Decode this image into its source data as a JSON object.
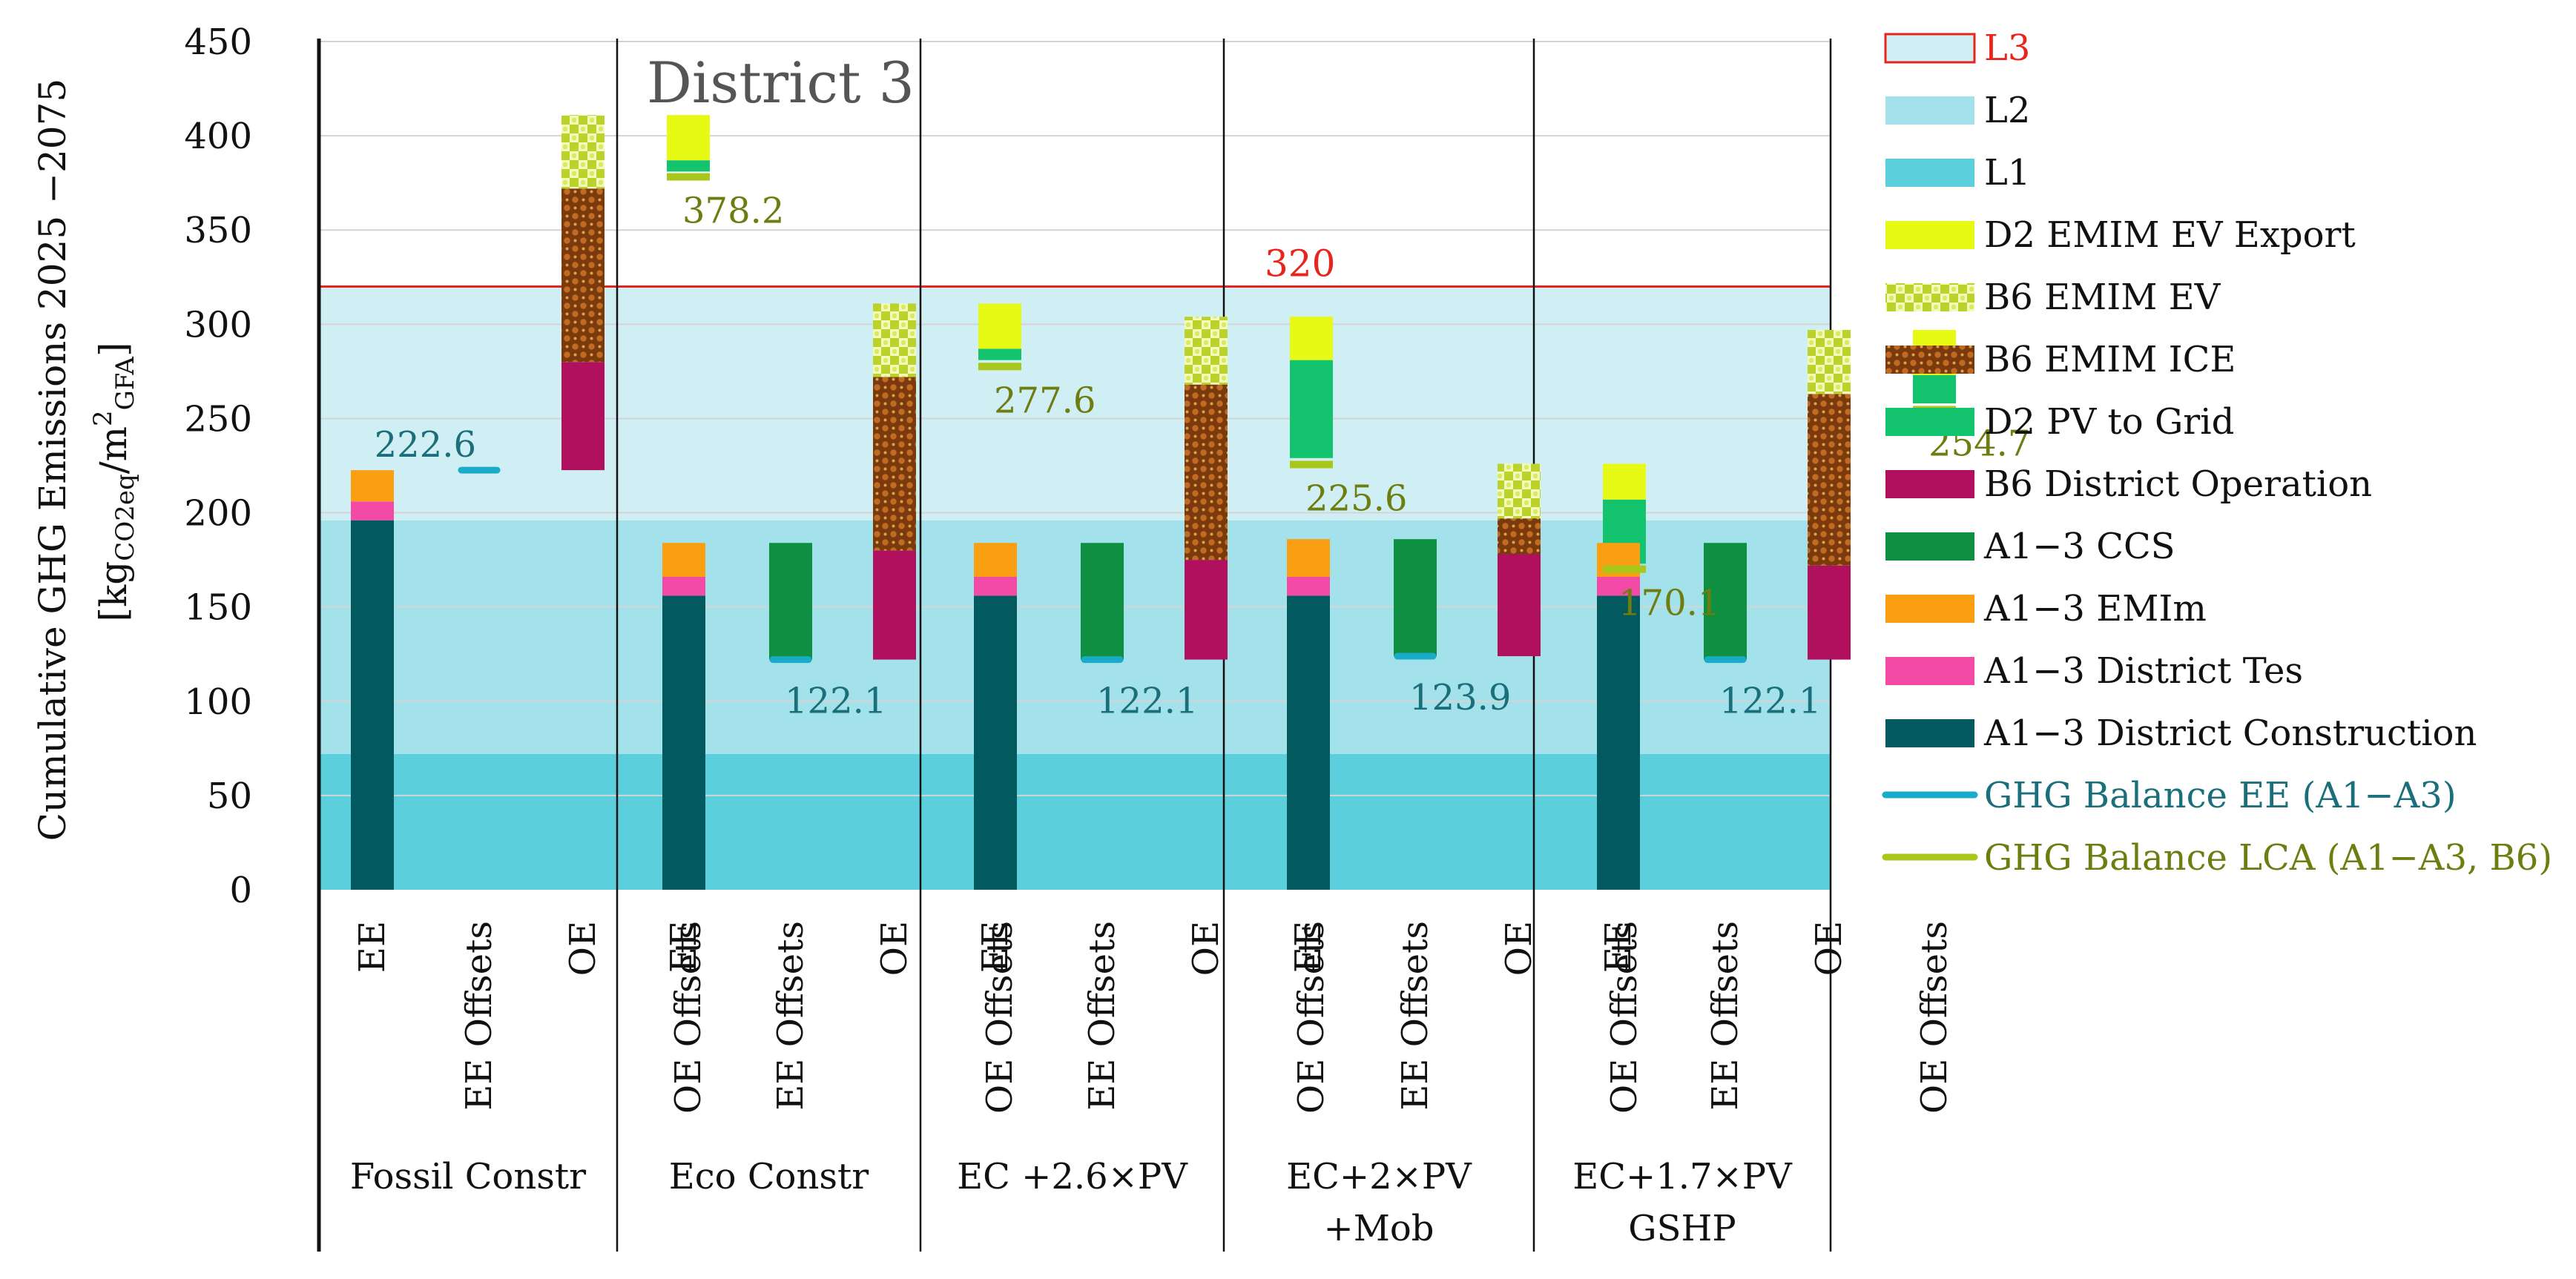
{
  "chart_data": {
    "type": "bar",
    "subtype": "stacked-floating-bar",
    "title": "District 3",
    "ylabel_line1": "Cumulative GHG Emissions 2025 −2075",
    "ylabel_line2_prefix": "[kg",
    "ylabel_sub1": "CO2eq",
    "ylabel_mid": "/m",
    "ylabel_sup": "2",
    "ylabel_sub2": "GFA",
    "ylabel_suffix": "]",
    "ylim": [
      0,
      450
    ],
    "yticks": [
      "0",
      "50",
      "100",
      "150",
      "200",
      "250",
      "300",
      "350",
      "400",
      "450"
    ],
    "bands": [
      {
        "name": "L1",
        "from": 0,
        "to": 72,
        "color": "#5bcfdc"
      },
      {
        "name": "L2",
        "from": 72,
        "to": 196,
        "color": "#a3e2ea"
      },
      {
        "name": "L3",
        "from": 196,
        "to": 320,
        "color": "#d0eff4"
      }
    ],
    "limit_line": {
      "value": 320,
      "label": "320",
      "color": "#e8251c"
    },
    "bar_labels": [
      "EE",
      "EE Offsets",
      "OE",
      "OE Offsets"
    ],
    "scenarios": [
      {
        "name": "Fossil Constr",
        "name2": "",
        "ee": [
          {
            "series": "A1−3 District Construction",
            "from": 0,
            "to": 196
          },
          {
            "series": "A1−3 District Tes",
            "from": 196,
            "to": 206
          },
          {
            "series": "A1−3 EMIm",
            "from": 206,
            "to": 222.6
          }
        ],
        "ee_offsets": [],
        "ee_balance": 222.6,
        "ee_balance_label": "222.6",
        "oe": [
          {
            "series": "B6 District Operation",
            "from": 222.6,
            "to": 280
          },
          {
            "series": "B6 EMIM ICE",
            "from": 280,
            "to": 372
          },
          {
            "series": "B6 EMIM EV",
            "from": 372,
            "to": 411
          }
        ],
        "oe_offsets": [
          {
            "series": "D2 PV to Grid",
            "from": 381,
            "to": 387
          },
          {
            "series": "D2 EMIM EV Export",
            "from": 387,
            "to": 411
          }
        ],
        "lca_balance": 378.2,
        "lca_balance_label": "378.2"
      },
      {
        "name": "Eco Constr",
        "name2": "",
        "ee": [
          {
            "series": "A1−3 District Construction",
            "from": 0,
            "to": 156
          },
          {
            "series": "A1−3 District Tes",
            "from": 156,
            "to": 166
          },
          {
            "series": "A1−3 EMIm",
            "from": 166,
            "to": 184
          }
        ],
        "ee_offsets": [
          {
            "series": "A1−3 CCS",
            "from": 122.1,
            "to": 184
          }
        ],
        "ee_balance": 122.1,
        "ee_balance_label": "122.1",
        "oe": [
          {
            "series": "B6 District Operation",
            "from": 122.1,
            "to": 180
          },
          {
            "series": "B6 EMIM ICE",
            "from": 180,
            "to": 272
          },
          {
            "series": "B6 EMIM EV",
            "from": 272,
            "to": 311
          }
        ],
        "oe_offsets": [
          {
            "series": "D2 PV to Grid",
            "from": 281,
            "to": 287
          },
          {
            "series": "D2 EMIM EV Export",
            "from": 287,
            "to": 311
          }
        ],
        "lca_balance": 277.6,
        "lca_balance_label": "277.6"
      },
      {
        "name": "EC +2.6×PV",
        "name2": "",
        "ee": [
          {
            "series": "A1−3 District Construction",
            "from": 0,
            "to": 156
          },
          {
            "series": "A1−3 District Tes",
            "from": 156,
            "to": 166
          },
          {
            "series": "A1−3 EMIm",
            "from": 166,
            "to": 184
          }
        ],
        "ee_offsets": [
          {
            "series": "A1−3 CCS",
            "from": 122.1,
            "to": 184
          }
        ],
        "ee_balance": 122.1,
        "ee_balance_label": "122.1",
        "oe": [
          {
            "series": "B6 District Operation",
            "from": 122.1,
            "to": 175
          },
          {
            "series": "B6 EMIM ICE",
            "from": 175,
            "to": 268
          },
          {
            "series": "B6 EMIM EV",
            "from": 268,
            "to": 304
          }
        ],
        "oe_offsets": [
          {
            "series": "D2 PV to Grid",
            "from": 229,
            "to": 281
          },
          {
            "series": "D2 EMIM EV Export",
            "from": 281,
            "to": 304
          }
        ],
        "lca_balance": 225.6,
        "lca_balance_label": "225.6"
      },
      {
        "name": "EC+2×PV",
        "name2": "+Mob",
        "ee": [
          {
            "series": "A1−3 District Construction",
            "from": 0,
            "to": 156
          },
          {
            "series": "A1−3 District Tes",
            "from": 156,
            "to": 166
          },
          {
            "series": "A1−3 EMIm",
            "from": 166,
            "to": 186
          }
        ],
        "ee_offsets": [
          {
            "series": "A1−3 CCS",
            "from": 123.9,
            "to": 186
          }
        ],
        "ee_balance": 123.9,
        "ee_balance_label": "123.9",
        "oe": [
          {
            "series": "B6 District Operation",
            "from": 123.9,
            "to": 178
          },
          {
            "series": "B6 EMIM ICE",
            "from": 178,
            "to": 197
          },
          {
            "series": "B6 EMIM EV",
            "from": 197,
            "to": 226
          }
        ],
        "oe_offsets": [
          {
            "series": "D2 PV to Grid",
            "from": 173,
            "to": 207
          },
          {
            "series": "D2 EMIM EV Export",
            "from": 207,
            "to": 226
          }
        ],
        "lca_balance": 170.1,
        "lca_balance_label": "170.1"
      },
      {
        "name": "EC+1.7×PV",
        "name2": "GSHP",
        "ee": [
          {
            "series": "A1−3 District Construction",
            "from": 0,
            "to": 156
          },
          {
            "series": "A1−3 District Tes",
            "from": 156,
            "to": 166
          },
          {
            "series": "A1−3 EMIm",
            "from": 166,
            "to": 184
          }
        ],
        "ee_offsets": [
          {
            "series": "A1−3 CCS",
            "from": 122.1,
            "to": 184
          }
        ],
        "ee_balance": 122.1,
        "ee_balance_label": "122.1",
        "oe": [
          {
            "series": "B6 District Operation",
            "from": 122.1,
            "to": 172
          },
          {
            "series": "B6 EMIM ICE",
            "from": 172,
            "to": 263
          },
          {
            "series": "B6 EMIM EV",
            "from": 263,
            "to": 297
          }
        ],
        "oe_offsets": [
          {
            "series": "D2 PV to Grid",
            "from": 258,
            "to": 273
          },
          {
            "series": "D2 EMIM EV Export",
            "from": 273,
            "to": 297
          }
        ],
        "lca_balance": 254.7,
        "lca_balance_label": "254.7"
      }
    ],
    "legend": [
      {
        "label": "L3",
        "kind": "box-red",
        "color": "#d0eff4",
        "text_color": "#e8251c"
      },
      {
        "label": "L2",
        "kind": "box",
        "color": "#a3e2ea",
        "text_color": "#111111"
      },
      {
        "label": "L1",
        "kind": "box",
        "color": "#5bcfdc",
        "text_color": "#111111"
      },
      {
        "label": "D2 EMIM EV Export",
        "kind": "box",
        "color": "#e6fa16",
        "text_color": "#111111"
      },
      {
        "label": "B6 EMIM EV",
        "kind": "pattern-ev",
        "color": "#cfe33a",
        "text_color": "#111111"
      },
      {
        "label": "B6 EMIM ICE",
        "kind": "pattern-ice",
        "color": "#a8581a",
        "text_color": "#111111"
      },
      {
        "label": "D2 PV to Grid",
        "kind": "box",
        "color": "#14c36d",
        "text_color": "#111111"
      },
      {
        "label": "B6 District Operation",
        "kind": "box",
        "color": "#b0105e",
        "text_color": "#111111"
      },
      {
        "label": "A1−3 CCS",
        "kind": "box",
        "color": "#0e8f42",
        "text_color": "#111111"
      },
      {
        "label": "A1−3 EMIm",
        "kind": "box",
        "color": "#fa9e12",
        "text_color": "#111111"
      },
      {
        "label": "A1−3 District Tes",
        "kind": "box",
        "color": "#f34aa6",
        "text_color": "#111111"
      },
      {
        "label": "A1−3 District Construction",
        "kind": "box",
        "color": "#025a5f",
        "text_color": "#111111"
      },
      {
        "label": "GHG Balance EE (A1−A3)",
        "kind": "line",
        "color": "#1aabc8",
        "text_color": "#1a6f7a"
      },
      {
        "label": "GHG Balance LCA (A1−A3, B6)",
        "kind": "line",
        "color": "#a9c61b",
        "text_color": "#6e7d10"
      }
    ],
    "series_colors": {
      "A1−3 District Construction": "#025a5f",
      "A1−3 District Tes": "#f34aa6",
      "A1−3 EMIm": "#fa9e12",
      "A1−3 CCS": "#0e8f42",
      "B6 District Operation": "#b0105e",
      "B6 EMIM ICE": "#a8581a",
      "B6 EMIM EV": "#cfe33a",
      "D2 PV to Grid": "#14c36d",
      "D2 EMIM EV Export": "#e6fa16"
    },
    "ee_balance_color": "#1aabc8",
    "ee_balance_text_color": "#1a6f7a",
    "lca_balance_color": "#a9c61b",
    "lca_balance_text_color": "#6e7d10"
  }
}
